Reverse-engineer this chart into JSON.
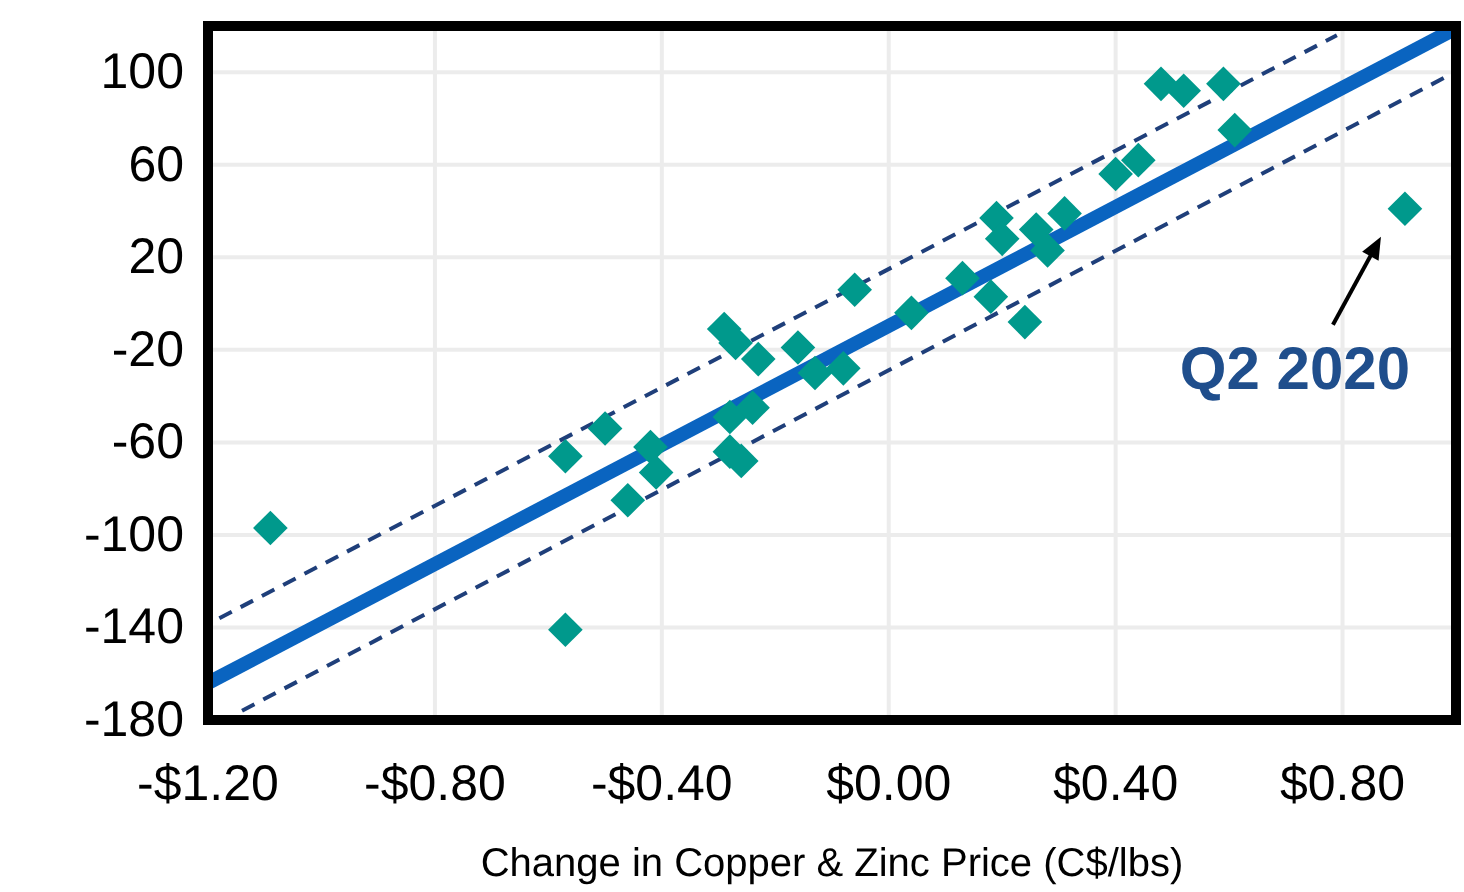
{
  "chart_data": {
    "type": "scatter",
    "xlabel": "Change in Copper & Zinc Price (C$/lbs)",
    "xlim": [
      -1.2,
      1.0
    ],
    "ylim": [
      -180,
      120
    ],
    "xticks": [
      {
        "value": -1.2,
        "label": "-$1.20"
      },
      {
        "value": -0.8,
        "label": "-$0.80"
      },
      {
        "value": -0.4,
        "label": "-$0.40"
      },
      {
        "value": 0,
        "label": "$0.00"
      },
      {
        "value": 0.4,
        "label": "$0.40"
      },
      {
        "value": 0.8,
        "label": "$0.80"
      }
    ],
    "yticks": [
      100,
      60,
      20,
      -20,
      -60,
      -100,
      -140,
      -180
    ],
    "grid": true,
    "marker": "diamond",
    "series": [
      {
        "color": "#00998c",
        "x": [
          -1.09,
          -0.57,
          -0.57,
          -0.5,
          -0.46,
          -0.42,
          -0.41,
          -0.29,
          -0.28,
          -0.28,
          -0.27,
          -0.24,
          -0.26,
          -0.23,
          -0.16,
          -0.13,
          -0.08,
          -0.06,
          0.04,
          0.13,
          0.18,
          0.24,
          0.19,
          0.2,
          0.26,
          0.28,
          0.31,
          0.4,
          0.44,
          0.48,
          0.52,
          0.59,
          0.61,
          0.91
        ],
        "values": [
          -97,
          -141,
          -66,
          -54,
          -85,
          -62,
          -73,
          -11,
          -49,
          -64,
          -17,
          -45,
          -68,
          -24,
          -19,
          -30,
          -28,
          6,
          -4,
          11,
          3,
          -8,
          37,
          28,
          32,
          23,
          39,
          56,
          62,
          95,
          92,
          95,
          75,
          41
        ]
      },
      {
        "type": "line",
        "color": "#0a64c0",
        "line_style": "solid",
        "marker": "none",
        "x": [
          -1.2,
          1.0
        ],
        "values": [
          -164,
          119
        ]
      },
      {
        "type": "line",
        "color": "#1f3f7a",
        "line_style": "dashed",
        "marker": "none",
        "x": [
          -1.18,
          0.79
        ],
        "values": [
          -136,
          116
        ]
      },
      {
        "type": "line",
        "color": "#1f3f7a",
        "line_style": "dashed",
        "marker": "none",
        "x": [
          -1.14,
          0.99
        ],
        "values": [
          -176,
          99
        ]
      }
    ],
    "annotations": [
      {
        "text": "Q2 2020",
        "x": 0.91,
        "y": 41
      }
    ]
  }
}
